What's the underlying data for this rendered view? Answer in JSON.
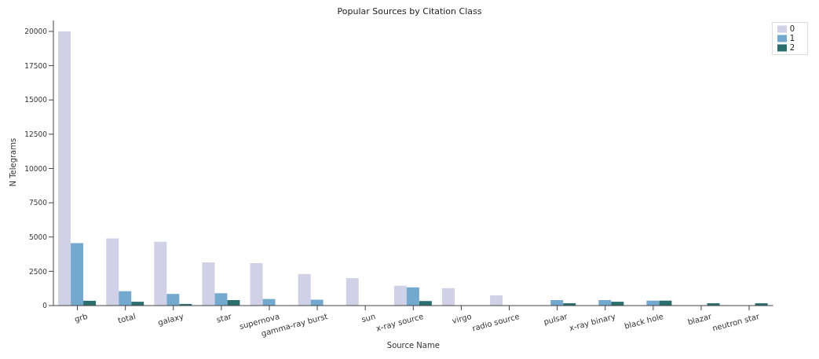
{
  "chart_data": {
    "type": "bar",
    "title": "Popular Sources by Citation Class",
    "xlabel": "Source Name",
    "ylabel": "N Telegrams",
    "categories": [
      "grb",
      "total",
      "galaxy",
      "star",
      "supernova",
      "gamma-ray burst",
      "sun",
      "x-ray source",
      "virgo",
      "radio source",
      "pulsar",
      "x-ray binary",
      "black hole",
      "blazar",
      "neutron star"
    ],
    "series": [
      {
        "name": "0",
        "color": "#d0d1e6",
        "values": [
          20000,
          4900,
          4650,
          3150,
          3100,
          2300,
          2000,
          1450,
          1270,
          750,
          null,
          null,
          null,
          null,
          null
        ]
      },
      {
        "name": "1",
        "color": "#74a9cf",
        "values": [
          4550,
          1050,
          850,
          900,
          480,
          430,
          null,
          1330,
          null,
          null,
          400,
          400,
          360,
          null,
          null
        ]
      },
      {
        "name": "2",
        "color": "#2b6f6f",
        "values": [
          350,
          280,
          120,
          400,
          null,
          null,
          null,
          330,
          null,
          null,
          170,
          280,
          360,
          170,
          170
        ]
      }
    ],
    "ylim": [
      0,
      20800
    ],
    "yticks": [
      0,
      2500,
      5000,
      7500,
      10000,
      12500,
      15000,
      17500,
      20000
    ],
    "grid": false,
    "legend": "top right"
  }
}
